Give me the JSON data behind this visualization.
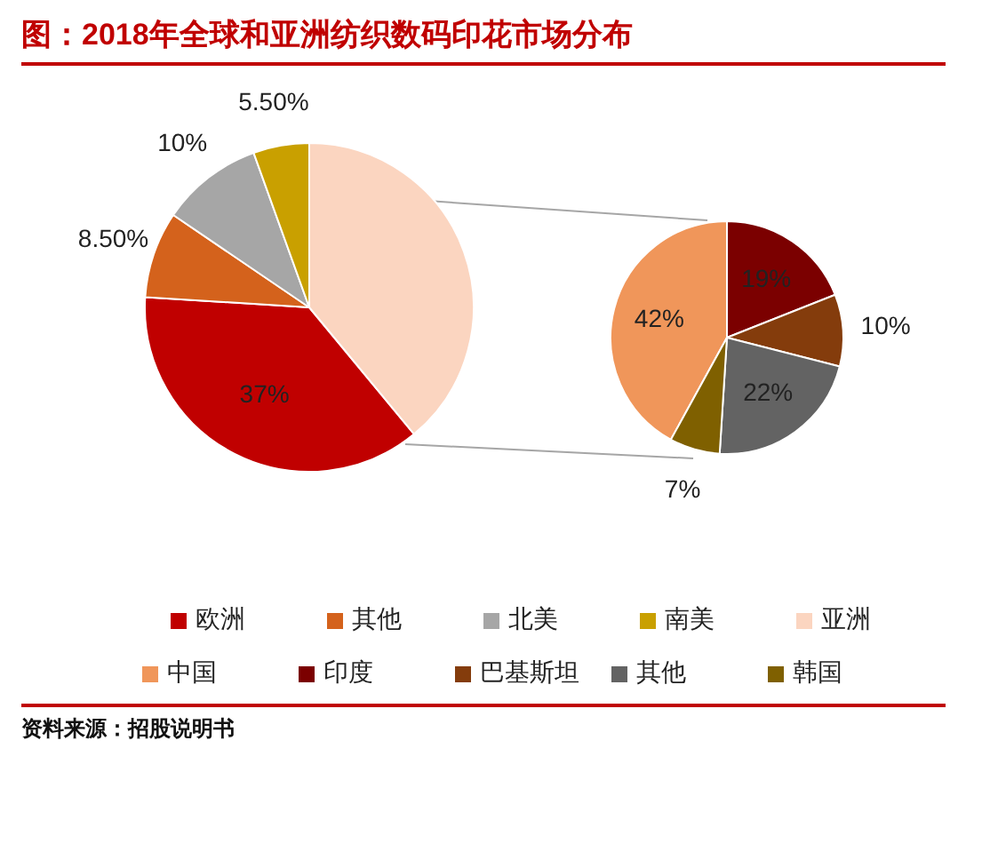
{
  "chart_data": [
    {
      "type": "pie",
      "title": "图：2018年全球和亚洲纺织数码印花市场分布",
      "categories": [
        "欧洲",
        "其他",
        "北美",
        "南美",
        "亚洲"
      ],
      "values": [
        37,
        8.5,
        10,
        5.5,
        39
      ],
      "value_labels": [
        "37%",
        "8.50%",
        "10%",
        "5.50%",
        null
      ],
      "colors": [
        "#c00000",
        "#d4621c",
        "#a6a6a6",
        "#c9a000",
        "#fbd5c0"
      ],
      "legend": "bottom",
      "annotations": [
        "资料来源：招股说明书"
      ]
    },
    {
      "type": "pie",
      "categories": [
        "中国",
        "印度",
        "巴基斯坦",
        "其他",
        "韩国"
      ],
      "values": [
        42,
        19,
        10,
        22,
        7
      ],
      "value_labels": [
        "42%",
        "19%",
        "10%",
        "22%",
        "7%"
      ],
      "colors": [
        "#f0965a",
        "#7b0000",
        "#843c0c",
        "#636363",
        "#7f6000"
      ],
      "legend": "bottom"
    }
  ]
}
